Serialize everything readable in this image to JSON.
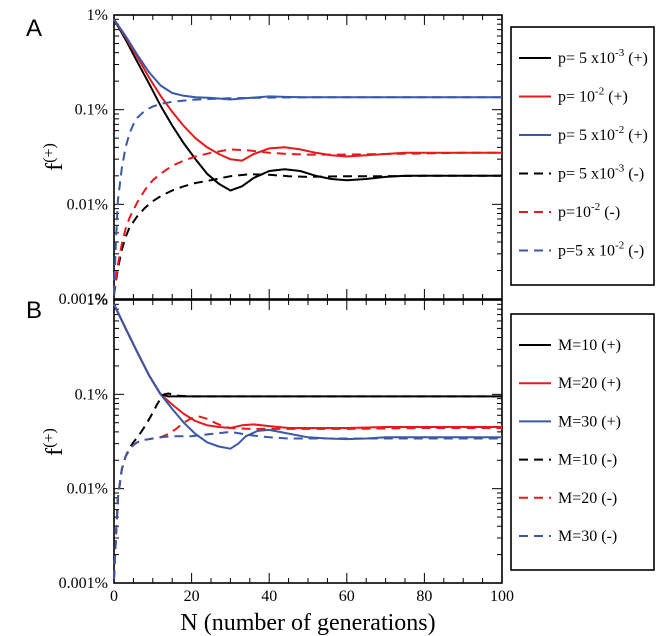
{
  "colors": {
    "black": "#000000",
    "red": "#e41a1c",
    "blue": "#3a58a8"
  },
  "chart_data": [
    {
      "panel": "A",
      "type": "line",
      "ylabel": "f",
      "ylabel_sup": "(+)",
      "xlabel": "",
      "xlim": [
        0,
        100
      ],
      "ylim": [
        0.001,
        1
      ],
      "yscale": "log",
      "y_unit": "%",
      "y_ticks": [
        0.001,
        0.01,
        0.1,
        1
      ],
      "y_tick_labels": [
        "0.001%",
        "0.01%",
        "0.1%",
        "1%"
      ],
      "x_tick_labels": [],
      "legend_position": "right",
      "series": [
        {
          "name": "p= 5 x10^-3 (+)",
          "color": "black",
          "dash": false,
          "label_parts": {
            "pre": "p= 5 x10",
            "sup": "-3",
            "post": "(+)"
          },
          "x": [
            0,
            3,
            6,
            9,
            12,
            15,
            18,
            21,
            24,
            27,
            30,
            33,
            36,
            40,
            44,
            48,
            52,
            56,
            60,
            65,
            70,
            75,
            80,
            90,
            100
          ],
          "y": [
            0.9,
            0.55,
            0.32,
            0.19,
            0.11,
            0.068,
            0.044,
            0.03,
            0.021,
            0.0165,
            0.014,
            0.0155,
            0.019,
            0.0225,
            0.0235,
            0.0225,
            0.02,
            0.0185,
            0.018,
            0.0185,
            0.0195,
            0.02,
            0.02,
            0.02,
            0.02
          ]
        },
        {
          "name": "p= 10^-2 (+)",
          "color": "red",
          "dash": false,
          "label_parts": {
            "pre": "p=  10",
            "sup": "-2",
            "post": "(+)"
          },
          "x": [
            0,
            3,
            6,
            9,
            12,
            15,
            18,
            21,
            24,
            27,
            30,
            33,
            36,
            40,
            44,
            48,
            52,
            56,
            60,
            65,
            70,
            75,
            80,
            90,
            100
          ],
          "y": [
            0.9,
            0.58,
            0.36,
            0.22,
            0.14,
            0.095,
            0.067,
            0.05,
            0.04,
            0.034,
            0.03,
            0.029,
            0.034,
            0.039,
            0.04,
            0.038,
            0.035,
            0.033,
            0.032,
            0.033,
            0.034,
            0.035,
            0.035,
            0.035,
            0.035
          ]
        },
        {
          "name": "p= 5 x10^-2 (+)",
          "color": "blue",
          "dash": false,
          "label_parts": {
            "pre": "p= 5 x10",
            "sup": "-2",
            "post": "(+)"
          },
          "x": [
            0,
            3,
            6,
            9,
            12,
            15,
            18,
            21,
            25,
            30,
            35,
            40,
            45,
            50,
            60,
            70,
            80,
            90,
            100
          ],
          "y": [
            0.9,
            0.6,
            0.38,
            0.25,
            0.18,
            0.15,
            0.14,
            0.135,
            0.133,
            0.128,
            0.133,
            0.138,
            0.136,
            0.135,
            0.135,
            0.135,
            0.135,
            0.135,
            0.135
          ]
        },
        {
          "name": "p= 5 x10^-3 (-)",
          "color": "black",
          "dash": true,
          "label_parts": {
            "pre": "p= 5 x10",
            "sup": "-3",
            "post": "(-)"
          },
          "x": [
            0,
            1,
            2,
            3,
            4,
            6,
            8,
            10,
            12,
            15,
            18,
            21,
            25,
            30,
            35,
            40,
            45,
            50,
            60,
            70,
            80,
            90,
            100
          ],
          "y": [
            0.0011,
            0.0021,
            0.0033,
            0.0045,
            0.0057,
            0.0075,
            0.0092,
            0.0108,
            0.0122,
            0.014,
            0.0155,
            0.0168,
            0.018,
            0.0198,
            0.0208,
            0.0205,
            0.0198,
            0.0195,
            0.0198,
            0.0198,
            0.02,
            0.02,
            0.02
          ]
        },
        {
          "name": "p=10^-2 (-)",
          "color": "red",
          "dash": true,
          "label_parts": {
            "pre": "p=10",
            "sup": "-2",
            "post": "(-)"
          },
          "x": [
            0,
            1,
            2,
            3,
            4,
            6,
            8,
            10,
            12,
            15,
            18,
            21,
            25,
            30,
            35,
            40,
            45,
            50,
            60,
            70,
            80,
            90,
            100
          ],
          "y": [
            0.0011,
            0.0023,
            0.0038,
            0.0055,
            0.0072,
            0.0105,
            0.0142,
            0.018,
            0.021,
            0.0255,
            0.029,
            0.032,
            0.035,
            0.038,
            0.037,
            0.035,
            0.034,
            0.0335,
            0.0335,
            0.034,
            0.0345,
            0.035,
            0.035
          ]
        },
        {
          "name": "p=5 x 10^-2 (-)",
          "color": "blue",
          "dash": true,
          "label_parts": {
            "pre": "p=5 x 10",
            "sup": "-2",
            "post": "(-)"
          },
          "x": [
            0,
            0.5,
            1,
            2,
            3,
            4,
            5,
            6,
            8,
            10,
            12,
            15,
            20,
            25,
            30,
            40,
            50,
            60,
            70,
            80,
            90,
            100
          ],
          "y": [
            0.0011,
            0.004,
            0.011,
            0.024,
            0.04,
            0.056,
            0.07,
            0.082,
            0.098,
            0.108,
            0.115,
            0.121,
            0.127,
            0.13,
            0.132,
            0.134,
            0.135,
            0.135,
            0.135,
            0.135,
            0.135,
            0.135
          ]
        }
      ]
    },
    {
      "panel": "B",
      "type": "line",
      "ylabel": "f",
      "ylabel_sup": "(+)",
      "xlabel": "N (number of generations)",
      "xlim": [
        0,
        100
      ],
      "ylim": [
        0.001,
        1
      ],
      "yscale": "log",
      "y_unit": "%",
      "y_ticks": [
        0.001,
        0.01,
        0.1,
        1
      ],
      "y_tick_labels": [
        "0.001%",
        "0.01%",
        "0.1%",
        "1%"
      ],
      "x_ticks": [
        0,
        20,
        40,
        60,
        80,
        100
      ],
      "x_tick_labels": [
        "0",
        "20",
        "40",
        "60",
        "80",
        "100"
      ],
      "legend_position": "right",
      "series": [
        {
          "name": "M=10 (+)",
          "color": "black",
          "dash": false,
          "x": [
            0,
            3,
            6,
            9,
            12,
            14,
            16,
            20,
            30,
            40,
            60,
            80,
            100
          ],
          "y": [
            0.9,
            0.5,
            0.28,
            0.16,
            0.1,
            0.095,
            0.095,
            0.095,
            0.095,
            0.095,
            0.095,
            0.095,
            0.095
          ]
        },
        {
          "name": "M=20 (+)",
          "color": "red",
          "dash": false,
          "x": [
            0,
            3,
            6,
            9,
            12,
            15,
            18,
            21,
            24,
            27,
            30,
            33,
            36,
            40,
            45,
            50,
            60,
            70,
            80,
            90,
            100
          ],
          "y": [
            0.9,
            0.5,
            0.28,
            0.16,
            0.1,
            0.078,
            0.062,
            0.052,
            0.047,
            0.045,
            0.044,
            0.047,
            0.048,
            0.046,
            0.044,
            0.044,
            0.044,
            0.045,
            0.045,
            0.045,
            0.045
          ]
        },
        {
          "name": "M=30 (+)",
          "color": "blue",
          "dash": false,
          "x": [
            0,
            3,
            6,
            9,
            12,
            15,
            18,
            21,
            24,
            27,
            30,
            32,
            34,
            37,
            40,
            44,
            50,
            55,
            60,
            65,
            70,
            80,
            90,
            100
          ],
          "y": [
            0.9,
            0.5,
            0.28,
            0.16,
            0.1,
            0.07,
            0.05,
            0.038,
            0.031,
            0.028,
            0.0265,
            0.03,
            0.036,
            0.041,
            0.042,
            0.039,
            0.035,
            0.034,
            0.0335,
            0.034,
            0.035,
            0.035,
            0.035,
            0.035
          ]
        },
        {
          "name": "M=10 (-)",
          "color": "black",
          "dash": true,
          "x": [
            0,
            0.5,
            1,
            2,
            3,
            4,
            5,
            6,
            7,
            8,
            9,
            10,
            11,
            12,
            13,
            14,
            15,
            16,
            20,
            30,
            40,
            60,
            80,
            100
          ],
          "y": [
            0.0011,
            0.003,
            0.008,
            0.016,
            0.022,
            0.027,
            0.031,
            0.035,
            0.04,
            0.046,
            0.054,
            0.064,
            0.077,
            0.09,
            0.1,
            0.102,
            0.1,
            0.097,
            0.095,
            0.095,
            0.095,
            0.095,
            0.095,
            0.095
          ]
        },
        {
          "name": "M=20 (-)",
          "color": "red",
          "dash": true,
          "x": [
            0,
            0.5,
            1,
            2,
            3,
            4,
            5,
            6,
            8,
            10,
            12,
            14,
            16,
            18,
            20,
            22,
            24,
            26,
            28,
            30,
            35,
            40,
            50,
            60,
            80,
            100
          ],
          "y": [
            0.0011,
            0.003,
            0.008,
            0.016,
            0.022,
            0.026,
            0.029,
            0.031,
            0.033,
            0.034,
            0.035,
            0.038,
            0.043,
            0.05,
            0.056,
            0.058,
            0.055,
            0.05,
            0.046,
            0.044,
            0.043,
            0.043,
            0.043,
            0.043,
            0.044,
            0.044
          ]
        },
        {
          "name": "M=30 (-)",
          "color": "blue",
          "dash": true,
          "x": [
            0,
            0.5,
            1,
            2,
            3,
            4,
            5,
            6,
            8,
            10,
            12,
            15,
            20,
            25,
            30,
            35,
            40,
            45,
            50,
            60,
            70,
            80,
            90,
            100
          ],
          "y": [
            0.0011,
            0.003,
            0.008,
            0.016,
            0.022,
            0.026,
            0.029,
            0.031,
            0.033,
            0.034,
            0.035,
            0.036,
            0.036,
            0.038,
            0.04,
            0.037,
            0.035,
            0.034,
            0.034,
            0.034,
            0.034,
            0.034,
            0.034,
            0.034
          ]
        }
      ]
    }
  ]
}
